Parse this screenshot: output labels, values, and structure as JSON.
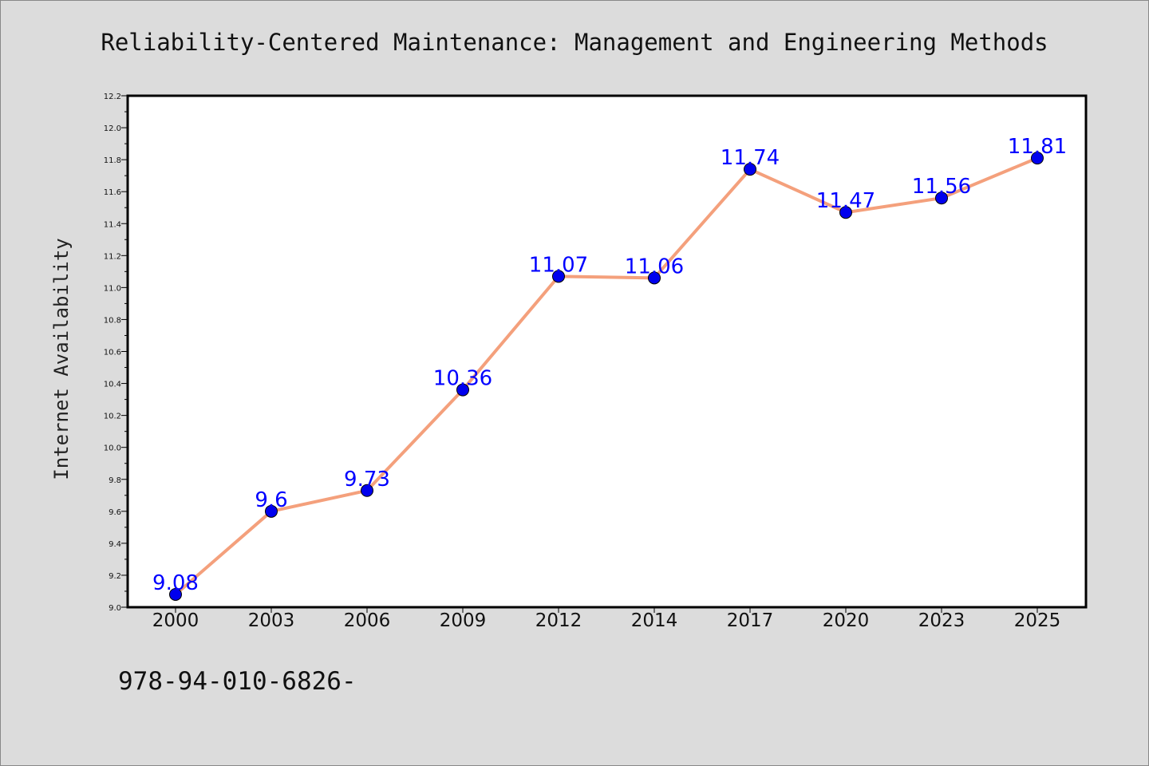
{
  "chart_data": {
    "type": "line",
    "title": "Reliability-Centered Maintenance: Management and Engineering Methods",
    "xlabel": "",
    "ylabel": "Internet Availability",
    "categories": [
      "2000",
      "2003",
      "2006",
      "2009",
      "2012",
      "2014",
      "2017",
      "2020",
      "2023",
      "2025"
    ],
    "series": [
      {
        "values": [
          9.08,
          9.6,
          9.73,
          10.36,
          11.07,
          11.06,
          11.74,
          11.47,
          11.56,
          11.81
        ]
      }
    ],
    "data_labels": [
      "9.08",
      "9.6",
      "9.73",
      "10.36",
      "11.07",
      "11.06",
      "11.74",
      "11.47",
      "11.56",
      "11.81"
    ],
    "ylim": [
      9.0,
      12.2
    ],
    "yticks": [
      "9.0",
      "9.2",
      "9.4",
      "9.6",
      "9.8",
      "10.0",
      "10.2",
      "10.4",
      "10.6",
      "10.8",
      "11.0",
      "11.2",
      "11.4",
      "11.6",
      "11.8",
      "12.0",
      "12.2"
    ],
    "grid": false,
    "legend": "none",
    "colors": {
      "line": "#f4a07c",
      "marker": "#0000ee",
      "label": "#0000ff",
      "background": "#dcdcdc",
      "plot_area": "#ffffff"
    }
  },
  "footer": {
    "text": "978-94-010-6826-"
  }
}
